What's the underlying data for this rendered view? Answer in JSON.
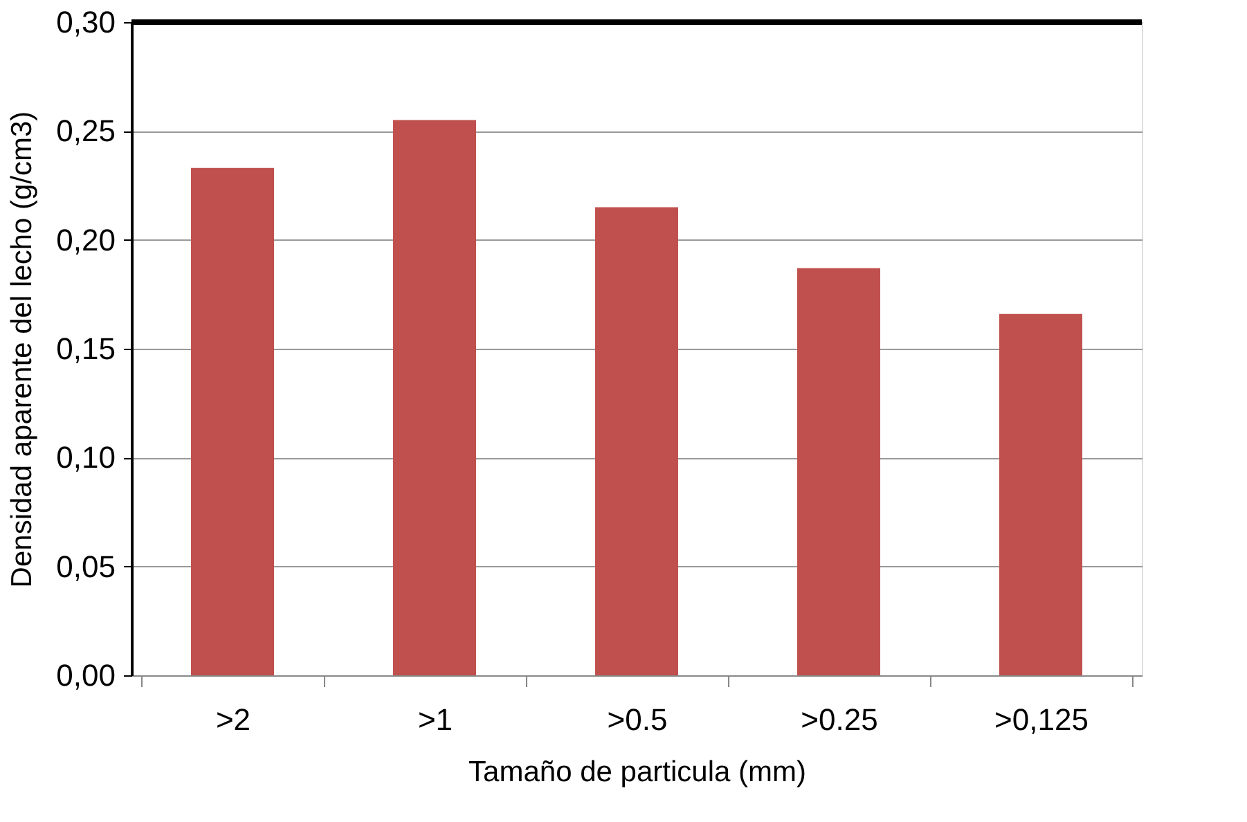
{
  "chart_data": {
    "type": "bar",
    "xlabel": "Tamaño de particula (mm)",
    "ylabel": "Densidad aparente del lecho (g/cm3)",
    "categories": [
      ">2",
      ">1",
      ">0.5",
      ">0.25",
      ">0,125"
    ],
    "values": [
      0.233,
      0.255,
      0.215,
      0.187,
      0.166
    ],
    "color": "#c0504d",
    "ylim": [
      0,
      0.3
    ],
    "yticks": [
      {
        "value": 0,
        "label": "0,00"
      },
      {
        "value": 0.05,
        "label": "0,05"
      },
      {
        "value": 0.1,
        "label": "0,10"
      },
      {
        "value": 0.15,
        "label": "0,15"
      },
      {
        "value": 0.2,
        "label": "0,20"
      },
      {
        "value": 0.25,
        "label": "0,25"
      },
      {
        "value": 0.3,
        "label": "0,30"
      }
    ],
    "grid": "y"
  }
}
